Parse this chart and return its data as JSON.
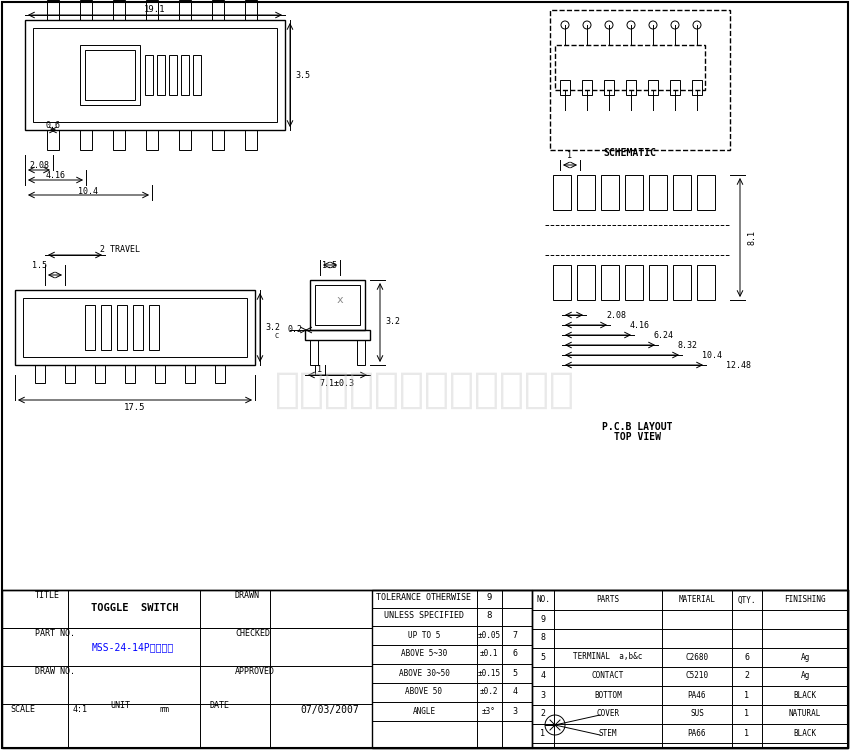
{
  "bg_color": "#ffffff",
  "line_color": "#000000",
  "watermark_color": "#c8c8c8",
  "watermark_text": "深圳市鑫耀威电子有限公司",
  "title_block": {
    "title_label": "TITLE",
    "title_value": "TOGGLE  SWITCH",
    "drawn_label": "DRAWN",
    "partno_label": "PART NO.",
    "partno_value": "MSS-24-14P立式贴片",
    "checked_label": "CHECKED",
    "drawno_label": "DRAW NO.",
    "approved_label": "APPROVED",
    "scale_label": "SCALE",
    "scale_value": "4:1",
    "unit_label": "UNIT",
    "unit_value": "mm",
    "date_label": "DATE",
    "date_value": "07/03/2007"
  },
  "tolerance_block": {
    "headers": [
      "TOLERANCE OTHERWISE",
      ""
    ],
    "rows": [
      {
        "label": "UNLESS SPECIFIED",
        "value": "",
        "no": "8"
      },
      {
        "label": "UP TO 5",
        "value": "±0.05",
        "no": "7"
      },
      {
        "label": "ABOVE 5~30",
        "value": "±0.1",
        "no": "6"
      },
      {
        "label": "ABOVE 30~50",
        "value": "±0.15",
        "no": "5"
      },
      {
        "label": "ABOVE 50",
        "value": "±0.2",
        "no": "4"
      },
      {
        "label": "ANGLE",
        "value": "±3°",
        "no": "3"
      }
    ],
    "top_no": "9"
  },
  "bom_block": {
    "header": [
      "NO.",
      "PARTS",
      "MATERIAL",
      "QTY.",
      "FINISHING"
    ],
    "rows": [
      {
        "no": "5",
        "parts": "TERMINAL  a,b&c",
        "material": "C2680",
        "qty": "6",
        "finishing": "Ag"
      },
      {
        "no": "4",
        "parts": "CONTACT",
        "material": "C5210",
        "qty": "2",
        "finishing": "Ag"
      },
      {
        "no": "3",
        "parts": "BOTTOM",
        "material": "PA46",
        "qty": "1",
        "finishing": "BLACK"
      },
      {
        "no": "2",
        "parts": "COVER",
        "material": "SUS",
        "qty": "1",
        "finishing": "NATURAL"
      },
      {
        "no": "1",
        "parts": "STEM",
        "material": "PA66",
        "qty": "1",
        "finishing": "BLACK"
      }
    ]
  },
  "schematic_label": "SCHEMATIC",
  "pcb_label": [
    "P.C.B LAYOUT",
    "TOP VIEW"
  ]
}
